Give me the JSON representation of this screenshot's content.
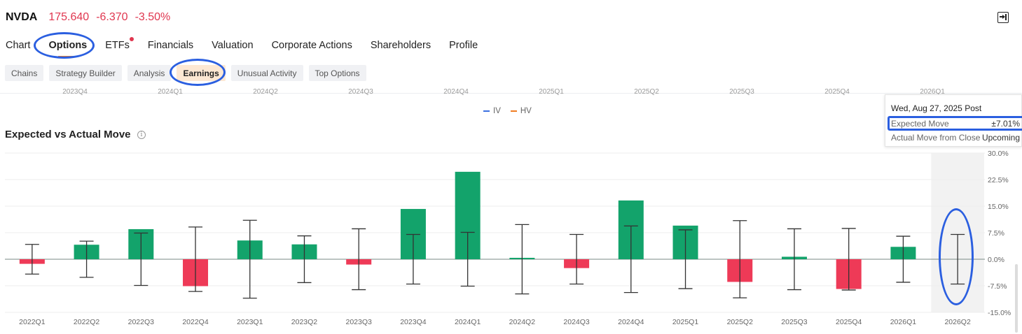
{
  "header": {
    "ticker": "NVDA",
    "price": "175.640",
    "change": "-6.370",
    "change_pct": "-3.50%",
    "exit_icon": "exit-fullscreen-icon"
  },
  "main_tabs": [
    {
      "label": "Chart",
      "active": false
    },
    {
      "label": "Options",
      "active": true
    },
    {
      "label": "ETFs",
      "active": false,
      "dot": true
    },
    {
      "label": "Financials",
      "active": false
    },
    {
      "label": "Valuation",
      "active": false
    },
    {
      "label": "Corporate Actions",
      "active": false
    },
    {
      "label": "Shareholders",
      "active": false
    },
    {
      "label": "Profile",
      "active": false
    }
  ],
  "sub_tabs": [
    {
      "label": "Chains",
      "active": false
    },
    {
      "label": "Strategy Builder",
      "active": false
    },
    {
      "label": "Analysis",
      "active": false
    },
    {
      "label": "Earnings",
      "active": true
    },
    {
      "label": "Unusual Activity",
      "active": false
    },
    {
      "label": "Top Options",
      "active": false
    }
  ],
  "prev_chart": {
    "x_labels": [
      "2023Q4",
      "2024Q1",
      "2024Q2",
      "2024Q3",
      "2024Q4",
      "2025Q1",
      "2025Q2",
      "2025Q3",
      "2025Q4",
      "2026Q1"
    ],
    "legend": [
      {
        "name": "IV",
        "color": "#3b6fe0"
      },
      {
        "name": "HV",
        "color": "#f07d22"
      }
    ]
  },
  "section": {
    "title": "Expected vs Actual Move",
    "info_icon": "info-icon"
  },
  "tooltip": {
    "header": "Wed, Aug 27, 2025 Post",
    "expected_label": "Expected Move",
    "expected_value": "±7.01%",
    "actual_label": "Actual Move from Close",
    "actual_value": "Upcoming"
  },
  "colors": {
    "up": "#13a36b",
    "down": "#ee3a57",
    "whisker": "#333333",
    "annotation": "#2b5fe0",
    "accent": "#f07d22",
    "negative_text": "#e0364f"
  },
  "chart_data": {
    "type": "bar",
    "title": "Expected vs Actual Move",
    "categories": [
      "2022Q1",
      "2022Q2",
      "2022Q3",
      "2022Q4",
      "2023Q1",
      "2023Q2",
      "2023Q3",
      "2023Q4",
      "2024Q1",
      "2024Q2",
      "2024Q3",
      "2024Q4",
      "2025Q1",
      "2025Q2",
      "2025Q3",
      "2025Q4",
      "2026Q1",
      "2026Q2"
    ],
    "series": [
      {
        "name": "Actual Move from Close",
        "values": [
          -1.3,
          4.1,
          8.5,
          -7.6,
          5.3,
          4.2,
          -1.5,
          14.2,
          24.7,
          0.4,
          -2.5,
          16.6,
          9.5,
          -6.4,
          0.7,
          -8.4,
          3.5,
          null
        ]
      },
      {
        "name": "Expected Move",
        "values": [
          4.2,
          5.1,
          7.4,
          9.1,
          11.0,
          6.6,
          8.6,
          7.0,
          7.6,
          9.8,
          7.0,
          9.4,
          8.3,
          10.9,
          8.6,
          8.7,
          6.5,
          7.01
        ]
      }
    ],
    "y_ticks": [
      "30.0%",
      "22.5%",
      "15.0%",
      "7.5%",
      "0.0%",
      "-7.5%",
      "-15.0%"
    ],
    "ylim": [
      -15,
      30
    ],
    "xlabel": "",
    "ylabel": "",
    "highlighted_category": "2026Q2",
    "grid": true
  }
}
